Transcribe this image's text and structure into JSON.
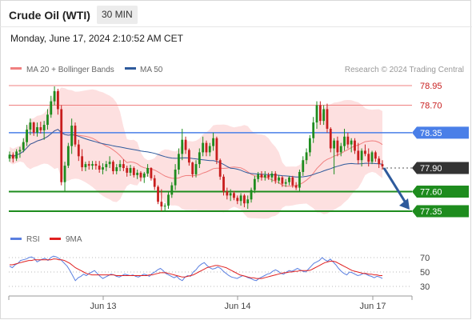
{
  "header": {
    "title": "Crude Oil (WTI)",
    "timeframe": "30 MIN"
  },
  "datetime": "Monday, June 17, 2024 2:10:52 AM CET",
  "copyright": "Research © 2024 Trading Central",
  "colors": {
    "ma20": "#f08080",
    "band": "#fde0e0",
    "ma50": "#2e5a9c",
    "resistance": "#f08080",
    "pivot": "#4a7fe8",
    "support": "#1e8c1e",
    "candle_up": "#1e8c1e",
    "candle_down": "#c81e1e",
    "last": "#333333",
    "arrow": "#2e5a9c",
    "rsi": "#5a7fe0",
    "rsi_ma": "#e02020"
  },
  "chart_data": [
    {
      "type": "candlestick",
      "title": "Crude Oil (WTI)",
      "ylim": [
        77.1,
        79.2
      ],
      "legend": [
        {
          "name": "MA 20 + Bollinger Bands",
          "color": "#f08080"
        },
        {
          "name": "MA 50",
          "color": "#2e5a9c"
        }
      ],
      "x_ticks": [
        "Jun 13",
        "Jun 14",
        "Jun 17"
      ],
      "levels": [
        {
          "label": "78.95",
          "value": 78.95,
          "kind": "resistance"
        },
        {
          "label": "78.70",
          "value": 78.7,
          "kind": "resistance"
        },
        {
          "label": "78.35",
          "value": 78.35,
          "kind": "pivot"
        },
        {
          "label": "77.90",
          "value": 77.9,
          "kind": "last"
        },
        {
          "label": "77.60",
          "value": 77.6,
          "kind": "support"
        },
        {
          "label": "77.35",
          "value": 77.35,
          "kind": "support"
        }
      ],
      "candles": [
        [
          78.02,
          78.11,
          77.98,
          78.07
        ],
        [
          78.07,
          78.1,
          77.97,
          78.02
        ],
        [
          78.02,
          78.14,
          77.99,
          78.11
        ],
        [
          78.11,
          78.17,
          78.03,
          78.13
        ],
        [
          78.13,
          78.28,
          78.1,
          78.23
        ],
        [
          78.23,
          78.45,
          78.18,
          78.39
        ],
        [
          78.39,
          78.53,
          78.32,
          78.48
        ],
        [
          78.48,
          78.49,
          78.31,
          78.35
        ],
        [
          78.35,
          78.48,
          78.3,
          78.42
        ],
        [
          78.42,
          78.49,
          78.34,
          78.38
        ],
        [
          78.38,
          78.5,
          78.26,
          78.45
        ],
        [
          78.45,
          78.65,
          78.39,
          78.58
        ],
        [
          78.58,
          78.82,
          78.54,
          78.75
        ],
        [
          78.75,
          78.94,
          78.7,
          78.88
        ],
        [
          78.88,
          78.91,
          78.58,
          78.65
        ],
        [
          78.65,
          78.7,
          77.68,
          77.72
        ],
        [
          77.72,
          77.98,
          77.6,
          77.93
        ],
        [
          77.93,
          78.22,
          77.9,
          78.18
        ],
        [
          78.18,
          78.53,
          78.08,
          78.44
        ],
        [
          78.44,
          78.48,
          78.17,
          78.2
        ],
        [
          78.2,
          78.26,
          77.99,
          78.05
        ],
        [
          78.05,
          78.14,
          77.86,
          77.91
        ],
        [
          77.91,
          77.98,
          77.86,
          77.95
        ],
        [
          77.95,
          77.99,
          77.88,
          77.93
        ],
        [
          77.93,
          77.99,
          77.88,
          77.95
        ],
        [
          77.95,
          77.99,
          77.88,
          77.93
        ],
        [
          77.93,
          77.99,
          77.84,
          77.88
        ],
        [
          77.88,
          77.96,
          77.82,
          77.91
        ],
        [
          77.91,
          77.99,
          77.86,
          77.95
        ],
        [
          77.95,
          78.05,
          77.9,
          77.98
        ],
        [
          77.98,
          78.0,
          77.82,
          77.86
        ],
        [
          77.86,
          77.95,
          77.82,
          77.91
        ],
        [
          77.91,
          78.0,
          77.86,
          77.95
        ],
        [
          77.95,
          78.01,
          77.86,
          77.9
        ],
        [
          77.9,
          77.93,
          77.79,
          77.84
        ],
        [
          77.84,
          77.94,
          77.8,
          77.9
        ],
        [
          77.9,
          77.92,
          77.78,
          77.81
        ],
        [
          77.81,
          77.88,
          77.76,
          77.84
        ],
        [
          77.84,
          77.86,
          77.73,
          77.78
        ],
        [
          77.78,
          77.85,
          77.71,
          77.83
        ],
        [
          77.83,
          77.95,
          77.79,
          77.9
        ],
        [
          77.9,
          77.91,
          77.74,
          77.77
        ],
        [
          77.77,
          77.81,
          77.62,
          77.66
        ],
        [
          77.66,
          77.68,
          77.44,
          77.47
        ],
        [
          77.47,
          77.63,
          77.35,
          77.41
        ],
        [
          77.41,
          77.45,
          77.35,
          77.42
        ],
        [
          77.42,
          77.6,
          77.38,
          77.56
        ],
        [
          77.56,
          77.72,
          77.52,
          77.68
        ],
        [
          77.68,
          77.95,
          77.62,
          77.88
        ],
        [
          77.88,
          78.15,
          77.82,
          78.08
        ],
        [
          78.08,
          78.4,
          78.0,
          78.26
        ],
        [
          78.26,
          78.3,
          78.08,
          78.13
        ],
        [
          78.13,
          78.15,
          77.93,
          77.97
        ],
        [
          77.97,
          77.98,
          77.78,
          77.82
        ],
        [
          77.82,
          78.0,
          77.78,
          77.95
        ],
        [
          77.95,
          78.15,
          77.9,
          78.1
        ],
        [
          78.1,
          78.3,
          78.05,
          78.22
        ],
        [
          78.22,
          78.25,
          78.05,
          78.1
        ],
        [
          78.1,
          78.22,
          78.05,
          78.18
        ],
        [
          78.18,
          78.35,
          78.12,
          78.28
        ],
        [
          78.28,
          78.3,
          77.95,
          78.0
        ],
        [
          78.0,
          78.02,
          77.75,
          77.79
        ],
        [
          77.79,
          77.82,
          77.55,
          77.6
        ],
        [
          77.6,
          77.65,
          77.5,
          77.55
        ],
        [
          77.55,
          77.63,
          77.48,
          77.58
        ],
        [
          77.58,
          77.61,
          77.49,
          77.52
        ],
        [
          77.52,
          77.55,
          77.44,
          77.48
        ],
        [
          77.48,
          77.58,
          77.42,
          77.55
        ],
        [
          77.55,
          77.57,
          77.4,
          77.45
        ],
        [
          77.45,
          77.55,
          77.38,
          77.5
        ],
        [
          77.5,
          77.65,
          77.46,
          77.62
        ],
        [
          77.62,
          77.8,
          77.58,
          77.76
        ],
        [
          77.76,
          77.85,
          77.72,
          77.82
        ],
        [
          77.82,
          77.86,
          77.74,
          77.78
        ],
        [
          77.78,
          77.86,
          77.74,
          77.81
        ],
        [
          77.81,
          77.84,
          77.75,
          77.78
        ],
        [
          77.78,
          77.86,
          77.72,
          77.83
        ],
        [
          77.83,
          77.86,
          77.7,
          77.74
        ],
        [
          77.74,
          77.81,
          77.7,
          77.78
        ],
        [
          77.78,
          77.8,
          77.66,
          77.7
        ],
        [
          77.7,
          77.76,
          77.66,
          77.72
        ],
        [
          77.72,
          77.8,
          77.68,
          77.78
        ],
        [
          77.78,
          77.8,
          77.65,
          77.68
        ],
        [
          77.68,
          77.72,
          77.62,
          77.65
        ],
        [
          77.65,
          77.88,
          77.6,
          77.85
        ],
        [
          77.85,
          78.05,
          77.8,
          78.0
        ],
        [
          78.0,
          78.15,
          77.95,
          78.1
        ],
        [
          78.1,
          78.32,
          78.05,
          78.28
        ],
        [
          78.28,
          78.55,
          78.22,
          78.48
        ],
        [
          78.48,
          78.75,
          78.4,
          78.7
        ],
        [
          78.7,
          78.75,
          78.45,
          78.5
        ],
        [
          78.5,
          78.7,
          78.45,
          78.65
        ],
        [
          78.65,
          78.72,
          78.35,
          78.4
        ],
        [
          78.4,
          78.42,
          78.1,
          78.15
        ],
        [
          78.15,
          78.28,
          77.82,
          78.25
        ],
        [
          78.25,
          78.3,
          78.05,
          78.1
        ],
        [
          78.1,
          78.22,
          78.05,
          78.18
        ],
        [
          78.18,
          78.4,
          78.12,
          78.3
        ],
        [
          78.3,
          78.35,
          78.15,
          78.2
        ],
        [
          78.2,
          78.28,
          78.1,
          78.25
        ],
        [
          78.25,
          78.28,
          78.08,
          78.12
        ],
        [
          78.12,
          78.22,
          77.95,
          78.0
        ],
        [
          78.0,
          78.15,
          77.92,
          78.12
        ],
        [
          78.12,
          78.2,
          78.05,
          78.08
        ],
        [
          78.08,
          78.15,
          77.92,
          77.98
        ],
        [
          77.98,
          78.12,
          77.95,
          78.1
        ],
        [
          78.1,
          78.12,
          77.98,
          78.02
        ],
        [
          78.02,
          78.05,
          77.9,
          77.95
        ],
        [
          77.95,
          78.0,
          77.88,
          77.92
        ]
      ]
    },
    {
      "type": "line",
      "title": "RSI",
      "legend": [
        {
          "name": "RSI",
          "color": "#5a7fe0"
        },
        {
          "name": "9MA",
          "color": "#e02020"
        }
      ],
      "ylim": [
        20,
        80
      ],
      "y_ticks": [
        "70",
        "50",
        "30"
      ],
      "series": [
        {
          "name": "RSI",
          "values": [
            58,
            56,
            60,
            62,
            66,
            67,
            68,
            70,
            71,
            69,
            64,
            66,
            68,
            69,
            66,
            70,
            72,
            71,
            69,
            66,
            62,
            58,
            52,
            45,
            38,
            42,
            44,
            47,
            45,
            48,
            50,
            52,
            48,
            44,
            41,
            43,
            45,
            47,
            46,
            44,
            43,
            45,
            47,
            46,
            45,
            46,
            44,
            43,
            45,
            47,
            46,
            44,
            48,
            50,
            53,
            55,
            52,
            48,
            46,
            44,
            42,
            44,
            40,
            38,
            43,
            45,
            44,
            50,
            53,
            58,
            61,
            63,
            59,
            56,
            54,
            55,
            57,
            55,
            51,
            48,
            45,
            43,
            42,
            41,
            43,
            45,
            44,
            42,
            41,
            39,
            38,
            41,
            43,
            45,
            47,
            48,
            51,
            53,
            51,
            48,
            47,
            50,
            52,
            51,
            53,
            55,
            53,
            51,
            50,
            54,
            58,
            62,
            64,
            66,
            70,
            67,
            65,
            68,
            64,
            60,
            55,
            51,
            48,
            46,
            50,
            49,
            47,
            45,
            46,
            48,
            47,
            45,
            44,
            42,
            44,
            43,
            41
          ]
        },
        {
          "name": "9MA",
          "values": [
            60,
            60,
            61,
            62,
            63,
            64,
            65,
            66,
            66,
            67,
            67,
            67,
            67,
            67,
            67,
            67,
            68,
            68,
            67,
            67,
            66,
            64,
            62,
            59,
            56,
            54,
            52,
            50,
            48,
            47,
            46,
            46,
            46,
            46,
            46,
            46,
            46,
            46,
            46,
            45,
            45,
            45,
            45,
            45,
            45,
            45,
            45,
            45,
            45,
            45,
            45,
            46,
            46,
            47,
            48,
            49,
            49,
            49,
            48,
            47,
            46,
            45,
            44,
            43,
            43,
            44,
            45,
            46,
            48,
            50,
            52,
            54,
            56,
            57,
            58,
            59,
            59,
            58,
            57,
            56,
            54,
            52,
            50,
            48,
            46,
            45,
            44,
            43,
            42,
            42,
            41,
            41,
            41,
            42,
            43,
            44,
            45,
            46,
            47,
            48,
            49,
            49,
            50,
            50,
            51,
            51,
            52,
            52,
            52,
            52,
            53,
            55,
            57,
            59,
            61,
            63,
            64,
            65,
            65,
            64,
            62,
            60,
            58,
            56,
            54,
            52,
            51,
            50,
            49,
            48,
            48,
            47,
            47,
            46,
            46,
            45,
            45
          ]
        }
      ]
    }
  ]
}
